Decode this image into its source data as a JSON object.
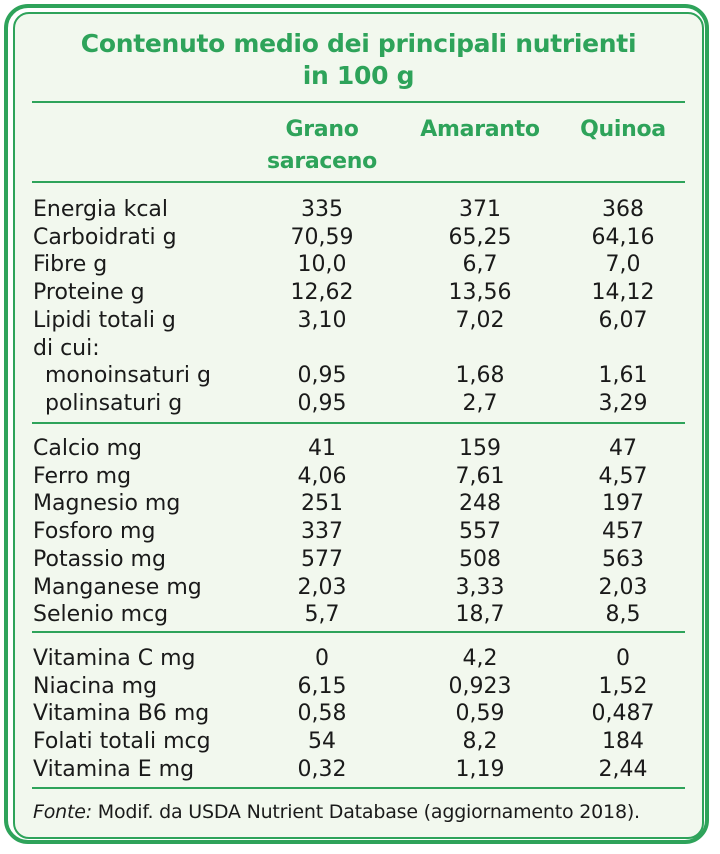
{
  "title": [
    "Contenuto medio dei principali nutrienti",
    "in 100 g"
  ],
  "columns": [
    [
      "Grano",
      "saraceno"
    ],
    [
      "Amaranto"
    ],
    [
      "Quinoa"
    ]
  ],
  "groups": [
    {
      "rows": [
        {
          "label": "Energia kcal",
          "values": [
            "335",
            "371",
            "368"
          ]
        },
        {
          "label": "Carboidrati g",
          "values": [
            "70,59",
            "65,25",
            "64,16"
          ]
        },
        {
          "label": "Fibre g",
          "values": [
            "10,0",
            "6,7",
            "7,0"
          ]
        },
        {
          "label": "Proteine g",
          "values": [
            "12,62",
            "13,56",
            "14,12"
          ]
        },
        {
          "label": "Lipidi totali g",
          "values": [
            "3,10",
            "7,02",
            "6,07"
          ]
        },
        {
          "label": "di cui:",
          "values": [
            "",
            "",
            ""
          ]
        },
        {
          "label": "monoinsaturi g",
          "indent": true,
          "values": [
            "0,95",
            "1,68",
            "1,61"
          ]
        },
        {
          "label": "polinsaturi g",
          "indent": true,
          "values": [
            "0,95",
            "2,7",
            "3,29"
          ]
        }
      ]
    },
    {
      "rows": [
        {
          "label": "Calcio mg",
          "values": [
            "41",
            "159",
            "47"
          ]
        },
        {
          "label": "Ferro mg",
          "values": [
            "4,06",
            "7,61",
            "4,57"
          ]
        },
        {
          "label": "Magnesio mg",
          "values": [
            "251",
            "248",
            "197"
          ]
        },
        {
          "label": "Fosforo mg",
          "values": [
            "337",
            "557",
            "457"
          ]
        },
        {
          "label": "Potassio mg",
          "values": [
            "577",
            "508",
            "563"
          ]
        },
        {
          "label": "Manganese mg",
          "values": [
            "2,03",
            "3,33",
            "2,03"
          ]
        },
        {
          "label": "Selenio mcg",
          "values": [
            "5,7",
            "18,7",
            "8,5"
          ]
        }
      ]
    },
    {
      "rows": [
        {
          "label": "Vitamina C mg",
          "values": [
            "0",
            "4,2",
            "0"
          ]
        },
        {
          "label": "Niacina mg",
          "values": [
            "6,15",
            "0,923",
            "1,52"
          ]
        },
        {
          "label": "Vitamina B6 mg",
          "values": [
            "0,58",
            "0,59",
            "0,487"
          ]
        },
        {
          "label": "Folati totali mcg",
          "values": [
            "54",
            "8,2",
            "184"
          ]
        },
        {
          "label": "Vitamina E mg",
          "values": [
            "0,32",
            "1,19",
            "2,44"
          ]
        }
      ]
    }
  ],
  "source": {
    "prefix": "Fonte:",
    "text": " Modif. da USDA Nutrient Database (aggiornamento 2018)."
  },
  "colors": {
    "accent": "#2ea35a",
    "panel": "#f2f8ee"
  }
}
